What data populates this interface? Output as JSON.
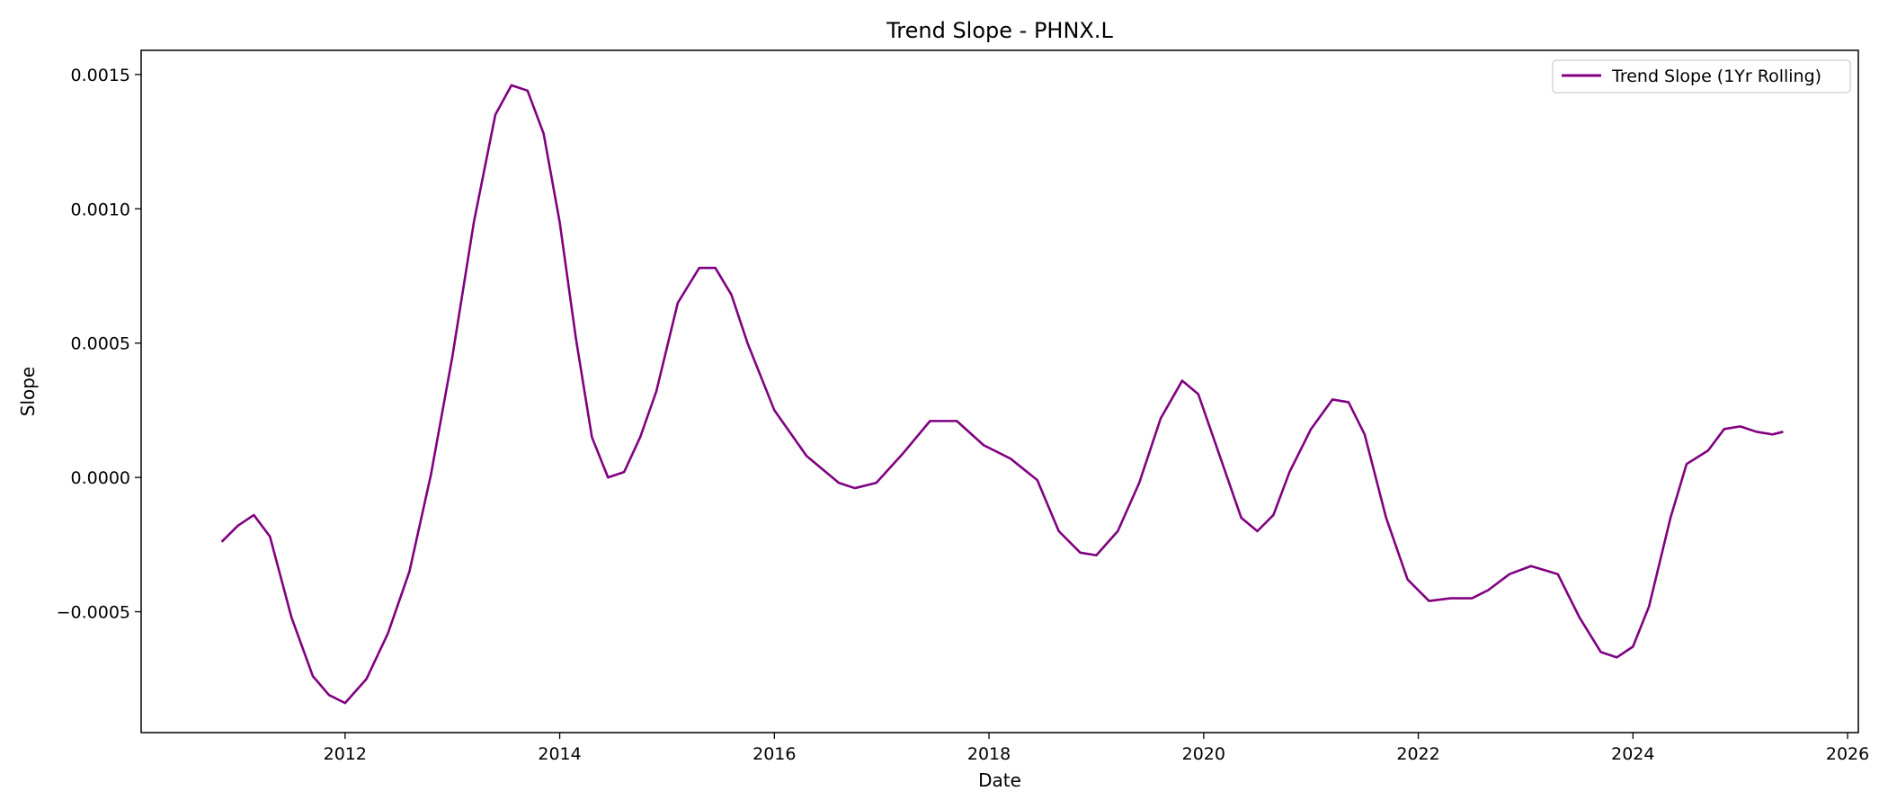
{
  "chart_data": {
    "type": "line",
    "title": "Trend Slope - PHNX.L",
    "xlabel": "Date",
    "ylabel": "Slope",
    "xlim": [
      2010.1,
      2026.1
    ],
    "ylim": [
      -0.00095,
      0.00159
    ],
    "x_ticks": [
      2012,
      2014,
      2016,
      2018,
      2020,
      2022,
      2024,
      2026
    ],
    "x_tick_labels": [
      "2012",
      "2014",
      "2016",
      "2018",
      "2020",
      "2022",
      "2024",
      "2026"
    ],
    "y_ticks": [
      -0.0005,
      0.0,
      0.0005,
      0.001,
      0.0015
    ],
    "y_tick_labels": [
      "−0.0005",
      "0.0000",
      "0.0005",
      "0.0010",
      "0.0015"
    ],
    "grid": false,
    "legend_position": "top-right",
    "series": [
      {
        "name": "Trend Slope (1Yr Rolling)",
        "color": "#800080",
        "x": [
          2010.85,
          2011.0,
          2011.15,
          2011.3,
          2011.5,
          2011.7,
          2011.85,
          2012.0,
          2012.2,
          2012.4,
          2012.6,
          2012.8,
          2013.0,
          2013.2,
          2013.4,
          2013.55,
          2013.7,
          2013.85,
          2014.0,
          2014.15,
          2014.3,
          2014.45,
          2014.6,
          2014.75,
          2014.9,
          2015.1,
          2015.3,
          2015.45,
          2015.6,
          2015.75,
          2016.0,
          2016.3,
          2016.6,
          2016.75,
          2016.95,
          2017.2,
          2017.45,
          2017.7,
          2017.95,
          2018.2,
          2018.45,
          2018.65,
          2018.85,
          2019.0,
          2019.2,
          2019.4,
          2019.6,
          2019.8,
          2019.95,
          2020.15,
          2020.35,
          2020.5,
          2020.65,
          2020.8,
          2021.0,
          2021.2,
          2021.35,
          2021.5,
          2021.7,
          2021.9,
          2022.1,
          2022.3,
          2022.5,
          2022.65,
          2022.85,
          2023.05,
          2023.3,
          2023.5,
          2023.7,
          2023.85,
          2024.0,
          2024.15,
          2024.35,
          2024.5,
          2024.7,
          2024.85,
          2025.0,
          2025.15,
          2025.3,
          2025.4
        ],
        "y": [
          -0.00024,
          -0.00018,
          -0.00014,
          -0.00022,
          -0.00052,
          -0.00074,
          -0.00081,
          -0.00084,
          -0.00075,
          -0.00058,
          -0.00035,
          1e-05,
          0.00045,
          0.00095,
          0.00135,
          0.00146,
          0.00144,
          0.00128,
          0.00095,
          0.00052,
          0.00015,
          0.0,
          2e-05,
          0.00015,
          0.00032,
          0.00065,
          0.00078,
          0.00078,
          0.00068,
          0.0005,
          0.00025,
          8e-05,
          -2e-05,
          -4e-05,
          -2e-05,
          9e-05,
          0.00021,
          0.00021,
          0.00012,
          7e-05,
          -1e-05,
          -0.0002,
          -0.00028,
          -0.00029,
          -0.0002,
          -2e-05,
          0.00022,
          0.00036,
          0.00031,
          8e-05,
          -0.00015,
          -0.0002,
          -0.00014,
          2e-05,
          0.00018,
          0.00029,
          0.00028,
          0.00016,
          -0.00015,
          -0.00038,
          -0.00046,
          -0.00045,
          -0.00045,
          -0.00042,
          -0.00036,
          -0.00033,
          -0.00036,
          -0.00052,
          -0.00065,
          -0.00067,
          -0.00063,
          -0.00048,
          -0.00015,
          5e-05,
          0.0001,
          0.00018,
          0.00019,
          0.00017,
          0.00016,
          0.00017
        ]
      }
    ]
  }
}
